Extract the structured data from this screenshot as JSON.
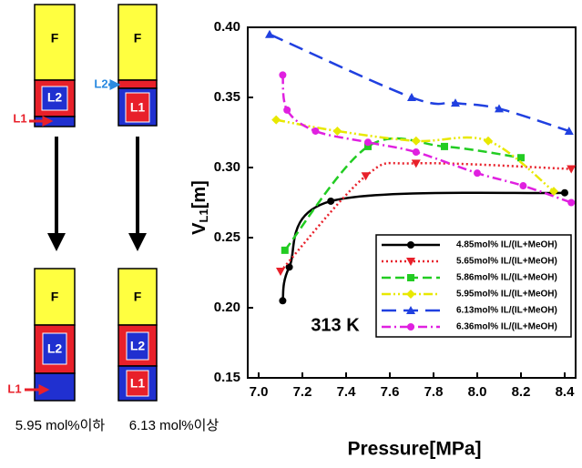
{
  "diagram": {
    "panels": [
      {
        "layers": [
          "F",
          "L2"
        ],
        "pointer": "L1"
      },
      {
        "layers": [
          "F",
          "L1"
        ],
        "pointer": "L2"
      },
      {
        "layers": [
          "F",
          "L2",
          "L1"
        ],
        "pointer": "L1"
      },
      {
        "layers": [
          "F",
          "L2",
          "L1"
        ]
      }
    ],
    "captions": [
      "5.95 mol%이하",
      "6.13 mol%이상"
    ]
  },
  "chart_data": {
    "type": "line",
    "y_label": [
      "V",
      "L1",
      "[m]"
    ],
    "x_label": "Pressure[MPa]",
    "annotation": "313 K",
    "xlim": [
      6.95,
      8.45
    ],
    "ylim": [
      0.15,
      0.4
    ],
    "xticks": [
      {
        "value": 7,
        "label": "7.0"
      },
      7.2,
      7.4,
      7.6,
      7.8,
      {
        "value": 8,
        "label": "8.0"
      },
      8.2,
      8.4
    ],
    "yticks": [
      0.15,
      {
        "value": 0.2,
        "label": "0.20"
      },
      0.25,
      {
        "value": 0.3,
        "label": "0.30"
      },
      0.35,
      {
        "value": 0.4,
        "label": "0.40"
      }
    ],
    "legend": "lower right",
    "series": [
      {
        "name": "4.85mol% IL/(IL+MeOH)",
        "color": "#000000",
        "linestyle": "solid",
        "marker": "circle",
        "x": [
          7.11,
          7.14,
          7.33,
          8.4
        ],
        "values": [
          0.205,
          0.229,
          0.276,
          0.282
        ]
      },
      {
        "name": "5.65mol% IL/(IL+MeOH)",
        "color": "#e8202a",
        "linestyle": "dotted",
        "marker": "triangle-down",
        "x": [
          7.1,
          7.49,
          7.72,
          8.43
        ],
        "values": [
          0.226,
          0.294,
          0.303,
          0.299
        ]
      },
      {
        "name": "5.86mol% IL/(IL+MeOH)",
        "color": "#22cc22",
        "linestyle": "dashed",
        "marker": "square",
        "x": [
          7.12,
          7.5,
          7.85,
          8.2
        ],
        "values": [
          0.241,
          0.315,
          0.315,
          0.307
        ]
      },
      {
        "name": "5.95mol% IL/(IL+MeOH)",
        "color": "#e8e800",
        "linestyle": "dashdotdot",
        "marker": "diamond",
        "x": [
          7.08,
          7.36,
          7.72,
          8.05,
          8.35
        ],
        "values": [
          0.334,
          0.326,
          0.319,
          0.319,
          0.283
        ]
      },
      {
        "name": "6.13mol% IL/(IL+MeOH)",
        "color": "#2040e0",
        "linestyle": "longdash",
        "marker": "triangle-up",
        "x": [
          7.05,
          7.7,
          7.9,
          8.1,
          8.42
        ],
        "values": [
          0.395,
          0.35,
          0.346,
          0.342,
          0.326
        ]
      },
      {
        "name": "6.36mol% IL/(IL+MeOH)",
        "color": "#e020e0",
        "linestyle": "dashdot",
        "marker": "circle",
        "x": [
          7.11,
          7.13,
          7.26,
          7.5,
          7.72,
          8.0,
          8.21,
          8.43
        ],
        "values": [
          0.366,
          0.341,
          0.326,
          0.318,
          0.311,
          0.296,
          0.287,
          0.275
        ]
      }
    ]
  }
}
